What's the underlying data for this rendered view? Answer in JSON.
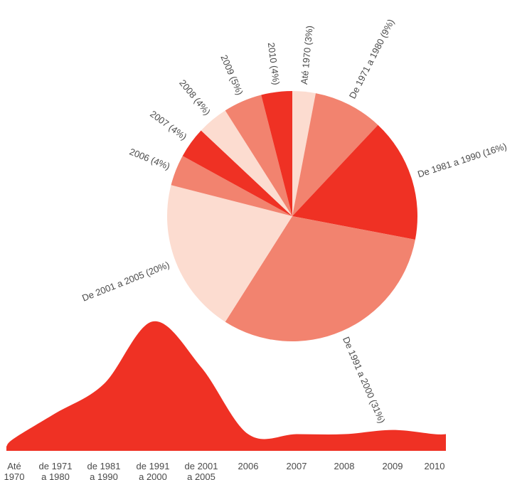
{
  "chart_data": [
    {
      "type": "pie",
      "colors": [
        "#fcdcd0",
        "#f2836f",
        "#ef3124"
      ],
      "slices": [
        {
          "label": "Até 1970 (3%)",
          "value": 3,
          "color": "#fcdcd0"
        },
        {
          "label": "De 1971 a 1980 (9%)",
          "value": 9,
          "color": "#f2836f"
        },
        {
          "label": "De 1981 a 1990 (16%)",
          "value": 16,
          "color": "#ef3124"
        },
        {
          "label": "De 1991 a 2000 (31%)",
          "value": 31,
          "color": "#f2836f"
        },
        {
          "label": "De 2001 a 2005 (20%)",
          "value": 20,
          "color": "#fcdcd0"
        },
        {
          "label": "2006 (4%)",
          "value": 4,
          "color": "#f2836f"
        },
        {
          "label": "2007 (4%)",
          "value": 4,
          "color": "#ef3124"
        },
        {
          "label": "2008 (4%)",
          "value": 4,
          "color": "#fcdcd0"
        },
        {
          "label": "2009 (5%)",
          "value": 5,
          "color": "#f2836f"
        },
        {
          "label": "2010 (4%)",
          "value": 4,
          "color": "#ef3124"
        }
      ]
    },
    {
      "type": "area",
      "color": "#ef3124",
      "categories": [
        [
          "Até",
          "1970"
        ],
        [
          "de 1971",
          "a 1980"
        ],
        [
          "de 1981",
          "a 1990"
        ],
        [
          "de 1991",
          "a 2000"
        ],
        [
          "de 2001",
          "a 2005"
        ],
        [
          "2006"
        ],
        [
          "2007"
        ],
        [
          "2008"
        ],
        [
          "2009"
        ],
        [
          "2010"
        ]
      ],
      "values": [
        3,
        9,
        16,
        31,
        20,
        4,
        4,
        4,
        5,
        4
      ]
    }
  ]
}
